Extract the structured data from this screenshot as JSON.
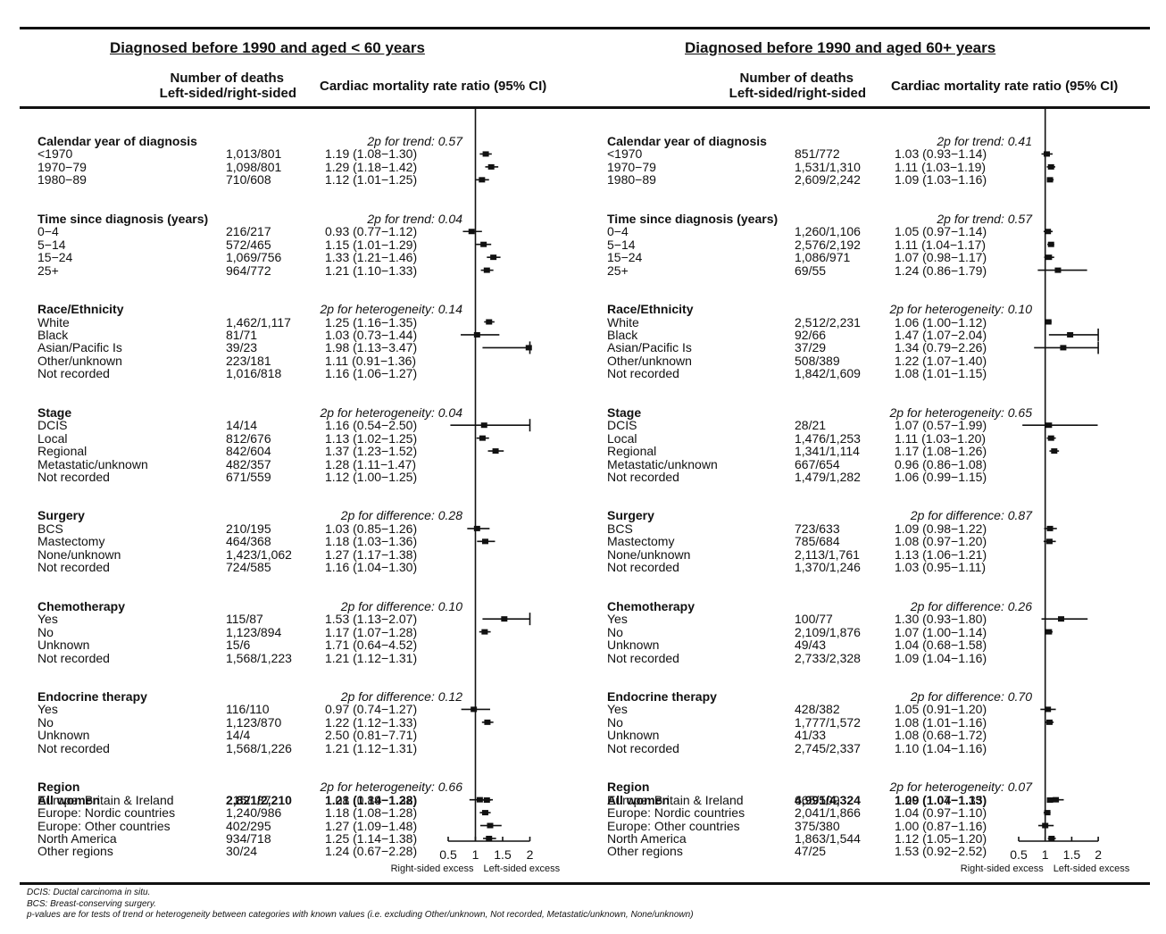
{
  "chart_data": [
    {
      "type": "forest",
      "title": "Diagnosed before 1990 and aged < 60 years",
      "col_deaths_header": [
        "Number of deaths",
        "Left-sided/right-sided"
      ],
      "col_ratio_header": "Cardiac mortality rate ratio (95% CI)",
      "xticks": [
        "0.5",
        "1",
        "1.5",
        "2"
      ],
      "xlim": [
        0.5,
        2
      ],
      "axis_left_label": "Right-sided excess",
      "axis_right_label": "Left-sided excess",
      "groups": [
        {
          "title": "Calendar year of diagnosis",
          "test": "2p for trend: 0.57",
          "rows": [
            {
              "label": "<1970",
              "deaths": "1,013/801",
              "ci": "1.19 (1.08−1.30)",
              "est": 1.19,
              "lo": 1.08,
              "hi": 1.3
            },
            {
              "label": "1970−79",
              "deaths": "1,098/801",
              "ci": "1.29 (1.18−1.42)",
              "est": 1.29,
              "lo": 1.18,
              "hi": 1.42
            },
            {
              "label": "1980−89",
              "deaths": "710/608",
              "ci": "1.12 (1.01−1.25)",
              "est": 1.12,
              "lo": 1.01,
              "hi": 1.25
            }
          ]
        },
        {
          "title": "Time since diagnosis (years)",
          "test": "2p for trend: 0.04",
          "rows": [
            {
              "label": "0−4",
              "deaths": "216/217",
              "ci": "0.93 (0.77−1.12)",
              "est": 0.93,
              "lo": 0.77,
              "hi": 1.12
            },
            {
              "label": "5−14",
              "deaths": "572/465",
              "ci": "1.15 (1.01−1.29)",
              "est": 1.15,
              "lo": 1.01,
              "hi": 1.29
            },
            {
              "label": "15−24",
              "deaths": "1,069/756",
              "ci": "1.33 (1.21−1.46)",
              "est": 1.33,
              "lo": 1.21,
              "hi": 1.46
            },
            {
              "label": "25+",
              "deaths": "964/772",
              "ci": "1.21 (1.10−1.33)",
              "est": 1.21,
              "lo": 1.1,
              "hi": 1.33
            }
          ]
        },
        {
          "title": "Race/Ethnicity",
          "test": "2p for heterogeneity: 0.14",
          "rows": [
            {
              "label": "White",
              "deaths": "1,462/1,117",
              "ci": "1.25 (1.16−1.35)",
              "est": 1.25,
              "lo": 1.16,
              "hi": 1.35
            },
            {
              "label": "Black",
              "deaths": "81/71",
              "ci": "1.03 (0.73−1.44)",
              "est": 1.03,
              "lo": 0.73,
              "hi": 1.44
            },
            {
              "label": "Asian/Pacific Is",
              "deaths": "39/23",
              "ci": "1.98 (1.13−3.47)",
              "est": 1.98,
              "lo": 1.13,
              "hi": 3.47
            },
            {
              "label": "Other/unknown",
              "deaths": "223/181",
              "ci": "1.11 (0.91−1.36)",
              "est": null,
              "lo": null,
              "hi": null
            },
            {
              "label": "Not recorded",
              "deaths": "1,016/818",
              "ci": "1.16 (1.06−1.27)",
              "est": null,
              "lo": null,
              "hi": null
            }
          ]
        },
        {
          "title": "Stage",
          "test": "2p for heterogeneity: 0.04",
          "rows": [
            {
              "label": "DCIS",
              "deaths": "14/14",
              "ci": "1.16 (0.54−2.50)",
              "est": 1.16,
              "lo": 0.54,
              "hi": 2.5
            },
            {
              "label": "Local",
              "deaths": "812/676",
              "ci": "1.13 (1.02−1.25)",
              "est": 1.13,
              "lo": 1.02,
              "hi": 1.25
            },
            {
              "label": "Regional",
              "deaths": "842/604",
              "ci": "1.37 (1.23−1.52)",
              "est": 1.37,
              "lo": 1.23,
              "hi": 1.52
            },
            {
              "label": "Metastatic/unknown",
              "deaths": "482/357",
              "ci": "1.28 (1.11−1.47)",
              "est": null,
              "lo": null,
              "hi": null
            },
            {
              "label": "Not recorded",
              "deaths": "671/559",
              "ci": "1.12 (1.00−1.25)",
              "est": null,
              "lo": null,
              "hi": null
            }
          ]
        },
        {
          "title": "Surgery",
          "test": "2p for difference: 0.28",
          "rows": [
            {
              "label": "BCS",
              "deaths": "210/195",
              "ci": "1.03 (0.85−1.26)",
              "est": 1.03,
              "lo": 0.85,
              "hi": 1.26
            },
            {
              "label": "Mastectomy",
              "deaths": "464/368",
              "ci": "1.18 (1.03−1.36)",
              "est": 1.18,
              "lo": 1.03,
              "hi": 1.36
            },
            {
              "label": "None/unknown",
              "deaths": "1,423/1,062",
              "ci": "1.27 (1.17−1.38)",
              "est": null,
              "lo": null,
              "hi": null
            },
            {
              "label": "Not recorded",
              "deaths": "724/585",
              "ci": "1.16 (1.04−1.30)",
              "est": null,
              "lo": null,
              "hi": null
            }
          ]
        },
        {
          "title": "Chemotherapy",
          "test": "2p for difference: 0.10",
          "rows": [
            {
              "label": "Yes",
              "deaths": "115/87",
              "ci": "1.53 (1.13−2.07)",
              "est": 1.53,
              "lo": 1.13,
              "hi": 2.07
            },
            {
              "label": "No",
              "deaths": "1,123/894",
              "ci": "1.17 (1.07−1.28)",
              "est": 1.17,
              "lo": 1.07,
              "hi": 1.28
            },
            {
              "label": "Unknown",
              "deaths": "15/6",
              "ci": "1.71 (0.64−4.52)",
              "est": null,
              "lo": null,
              "hi": null
            },
            {
              "label": "Not recorded",
              "deaths": "1,568/1,223",
              "ci": "1.21 (1.12−1.31)",
              "est": null,
              "lo": null,
              "hi": null
            }
          ]
        },
        {
          "title": "Endocrine therapy",
          "test": "2p for difference: 0.12",
          "rows": [
            {
              "label": "Yes",
              "deaths": "116/110",
              "ci": "0.97 (0.74−1.27)",
              "est": 0.97,
              "lo": 0.74,
              "hi": 1.27
            },
            {
              "label": "No",
              "deaths": "1,123/870",
              "ci": "1.22 (1.12−1.33)",
              "est": 1.22,
              "lo": 1.12,
              "hi": 1.33
            },
            {
              "label": "Unknown",
              "deaths": "14/4",
              "ci": "2.50 (0.81−7.71)",
              "est": null,
              "lo": null,
              "hi": null
            },
            {
              "label": "Not recorded",
              "deaths": "1,568/1,226",
              "ci": "1.21 (1.12−1.31)",
              "est": null,
              "lo": null,
              "hi": null
            }
          ]
        },
        {
          "title": "Region",
          "test": "2p for heterogeneity: 0.66",
          "rows": [
            {
              "label": "Europe: Britain & Ireland",
              "deaths": "215/187",
              "ci": "1.08 (0.89−1.32)",
              "est": 1.08,
              "lo": 0.89,
              "hi": 1.32
            },
            {
              "label": "Europe: Nordic countries",
              "deaths": "1,240/986",
              "ci": "1.18 (1.08−1.28)",
              "est": 1.18,
              "lo": 1.08,
              "hi": 1.28
            },
            {
              "label": "Europe: Other countries",
              "deaths": "402/295",
              "ci": "1.27 (1.09−1.48)",
              "est": 1.27,
              "lo": 1.09,
              "hi": 1.48
            },
            {
              "label": "North America",
              "deaths": "934/718",
              "ci": "1.25 (1.14−1.38)",
              "est": 1.25,
              "lo": 1.14,
              "hi": 1.38
            },
            {
              "label": "Other regions",
              "deaths": "30/24",
              "ci": "1.24 (0.67−2.28)",
              "est": null,
              "lo": null,
              "hi": null
            }
          ]
        }
      ],
      "all": {
        "label": "All women",
        "deaths": "2,821/2,210",
        "ci": "1.21 (1.14−1.28)",
        "est": 1.21,
        "lo": 1.14,
        "hi": 1.28
      }
    },
    {
      "type": "forest",
      "title": "Diagnosed before 1990 and aged 60+ years",
      "col_deaths_header": [
        "Number of deaths",
        "Left-sided/right-sided"
      ],
      "col_ratio_header": "Cardiac mortality rate ratio (95% CI)",
      "xticks": [
        "0.5",
        "1",
        "1.5",
        "2"
      ],
      "xlim": [
        0.5,
        2
      ],
      "axis_left_label": "Right-sided excess",
      "axis_right_label": "Left-sided excess",
      "groups": [
        {
          "title": "Calendar year of diagnosis",
          "test": "2p for trend: 0.41",
          "rows": [
            {
              "label": "<1970",
              "deaths": "851/772",
              "ci": "1.03 (0.93−1.14)",
              "est": 1.03,
              "lo": 0.93,
              "hi": 1.14
            },
            {
              "label": "1970−79",
              "deaths": "1,531/1,310",
              "ci": "1.11 (1.03−1.19)",
              "est": 1.11,
              "lo": 1.03,
              "hi": 1.19
            },
            {
              "label": "1980−89",
              "deaths": "2,609/2,242",
              "ci": "1.09 (1.03−1.16)",
              "est": 1.09,
              "lo": 1.03,
              "hi": 1.16
            }
          ]
        },
        {
          "title": "Time since diagnosis (years)",
          "test": "2p for trend: 0.57",
          "rows": [
            {
              "label": "0−4",
              "deaths": "1,260/1,106",
              "ci": "1.05 (0.97−1.14)",
              "est": 1.05,
              "lo": 0.97,
              "hi": 1.14
            },
            {
              "label": "5−14",
              "deaths": "2,576/2,192",
              "ci": "1.11 (1.04−1.17)",
              "est": 1.11,
              "lo": 1.04,
              "hi": 1.17
            },
            {
              "label": "15−24",
              "deaths": "1,086/971",
              "ci": "1.07 (0.98−1.17)",
              "est": 1.07,
              "lo": 0.98,
              "hi": 1.17
            },
            {
              "label": "25+",
              "deaths": "69/55",
              "ci": "1.24 (0.86−1.79)",
              "est": 1.24,
              "lo": 0.86,
              "hi": 1.79
            }
          ]
        },
        {
          "title": "Race/Ethnicity",
          "test": "2p for heterogeneity: 0.10",
          "rows": [
            {
              "label": "White",
              "deaths": "2,512/2,231",
              "ci": "1.06 (1.00−1.12)",
              "est": 1.06,
              "lo": 1.0,
              "hi": 1.12
            },
            {
              "label": "Black",
              "deaths": "92/66",
              "ci": "1.47 (1.07−2.04)",
              "est": 1.47,
              "lo": 1.07,
              "hi": 2.04
            },
            {
              "label": "Asian/Pacific Is",
              "deaths": "37/29",
              "ci": "1.34 (0.79−2.26)",
              "est": 1.34,
              "lo": 0.79,
              "hi": 2.26
            },
            {
              "label": "Other/unknown",
              "deaths": "508/389",
              "ci": "1.22 (1.07−1.40)",
              "est": null,
              "lo": null,
              "hi": null
            },
            {
              "label": "Not recorded",
              "deaths": "1,842/1,609",
              "ci": "1.08 (1.01−1.15)",
              "est": null,
              "lo": null,
              "hi": null
            }
          ]
        },
        {
          "title": "Stage",
          "test": "2p for heterogeneity: 0.65",
          "rows": [
            {
              "label": "DCIS",
              "deaths": "28/21",
              "ci": "1.07 (0.57−1.99)",
              "est": 1.07,
              "lo": 0.57,
              "hi": 1.99
            },
            {
              "label": "Local",
              "deaths": "1,476/1,253",
              "ci": "1.11 (1.03−1.20)",
              "est": 1.11,
              "lo": 1.03,
              "hi": 1.2
            },
            {
              "label": "Regional",
              "deaths": "1,341/1,114",
              "ci": "1.17 (1.08−1.26)",
              "est": 1.17,
              "lo": 1.08,
              "hi": 1.26
            },
            {
              "label": "Metastatic/unknown",
              "deaths": "667/654",
              "ci": "0.96 (0.86−1.08)",
              "est": null,
              "lo": null,
              "hi": null
            },
            {
              "label": "Not recorded",
              "deaths": "1,479/1,282",
              "ci": "1.06 (0.99−1.15)",
              "est": null,
              "lo": null,
              "hi": null
            }
          ]
        },
        {
          "title": "Surgery",
          "test": "2p for difference: 0.87",
          "rows": [
            {
              "label": "BCS",
              "deaths": "723/633",
              "ci": "1.09 (0.98−1.22)",
              "est": 1.09,
              "lo": 0.98,
              "hi": 1.22
            },
            {
              "label": "Mastectomy",
              "deaths": "785/684",
              "ci": "1.08 (0.97−1.20)",
              "est": 1.08,
              "lo": 0.97,
              "hi": 1.2
            },
            {
              "label": "None/unknown",
              "deaths": "2,113/1,761",
              "ci": "1.13 (1.06−1.21)",
              "est": null,
              "lo": null,
              "hi": null
            },
            {
              "label": "Not recorded",
              "deaths": "1,370/1,246",
              "ci": "1.03 (0.95−1.11)",
              "est": null,
              "lo": null,
              "hi": null
            }
          ]
        },
        {
          "title": "Chemotherapy",
          "test": "2p for difference: 0.26",
          "rows": [
            {
              "label": "Yes",
              "deaths": "100/77",
              "ci": "1.30 (0.93−1.80)",
              "est": 1.3,
              "lo": 0.93,
              "hi": 1.8
            },
            {
              "label": "No",
              "deaths": "2,109/1,876",
              "ci": "1.07 (1.00−1.14)",
              "est": 1.07,
              "lo": 1.0,
              "hi": 1.14
            },
            {
              "label": "Unknown",
              "deaths": "49/43",
              "ci": "1.04 (0.68−1.58)",
              "est": null,
              "lo": null,
              "hi": null
            },
            {
              "label": "Not recorded",
              "deaths": "2,733/2,328",
              "ci": "1.09 (1.04−1.16)",
              "est": null,
              "lo": null,
              "hi": null
            }
          ]
        },
        {
          "title": "Endocrine therapy",
          "test": "2p for difference: 0.70",
          "rows": [
            {
              "label": "Yes",
              "deaths": "428/382",
              "ci": "1.05 (0.91−1.20)",
              "est": 1.05,
              "lo": 0.91,
              "hi": 1.2
            },
            {
              "label": "No",
              "deaths": "1,777/1,572",
              "ci": "1.08 (1.01−1.16)",
              "est": 1.08,
              "lo": 1.01,
              "hi": 1.16
            },
            {
              "label": "Unknown",
              "deaths": "41/33",
              "ci": "1.08 (0.68−1.72)",
              "est": null,
              "lo": null,
              "hi": null
            },
            {
              "label": "Not recorded",
              "deaths": "2,745/2,337",
              "ci": "1.10 (1.04−1.16)",
              "est": null,
              "lo": null,
              "hi": null
            }
          ]
        },
        {
          "title": "Region",
          "test": "2p for heterogeneity: 0.07",
          "rows": [
            {
              "label": "Europe: Britain & Ireland",
              "deaths": "665/509",
              "ci": "1.20 (1.07−1.35)",
              "est": 1.2,
              "lo": 1.07,
              "hi": 1.35
            },
            {
              "label": "Europe: Nordic countries",
              "deaths": "2,041/1,866",
              "ci": "1.04 (0.97−1.10)",
              "est": 1.04,
              "lo": 0.97,
              "hi": 1.1
            },
            {
              "label": "Europe: Other countries",
              "deaths": "375/380",
              "ci": "1.00 (0.87−1.16)",
              "est": 1.0,
              "lo": 0.87,
              "hi": 1.16
            },
            {
              "label": "North America",
              "deaths": "1,863/1,544",
              "ci": "1.12 (1.05−1.20)",
              "est": 1.12,
              "lo": 1.05,
              "hi": 1.2
            },
            {
              "label": "Other regions",
              "deaths": "47/25",
              "ci": "1.53 (0.92−2.52)",
              "est": null,
              "lo": null,
              "hi": null
            }
          ]
        }
      ],
      "all": {
        "label": "All women",
        "deaths": "4,991/4,324",
        "ci": "1.09 (1.04−1.13)",
        "est": 1.09,
        "lo": 1.04,
        "hi": 1.13
      }
    }
  ],
  "footer": [
    "DCIS: Ductal carcinoma in situ.",
    "BCS: Breast-conserving surgery.",
    "p-values are for tests of trend or heterogeneity between categories with known values (i.e. excluding Other/unknown, Not recorded, Metastatic/unknown, None/unknown)"
  ]
}
